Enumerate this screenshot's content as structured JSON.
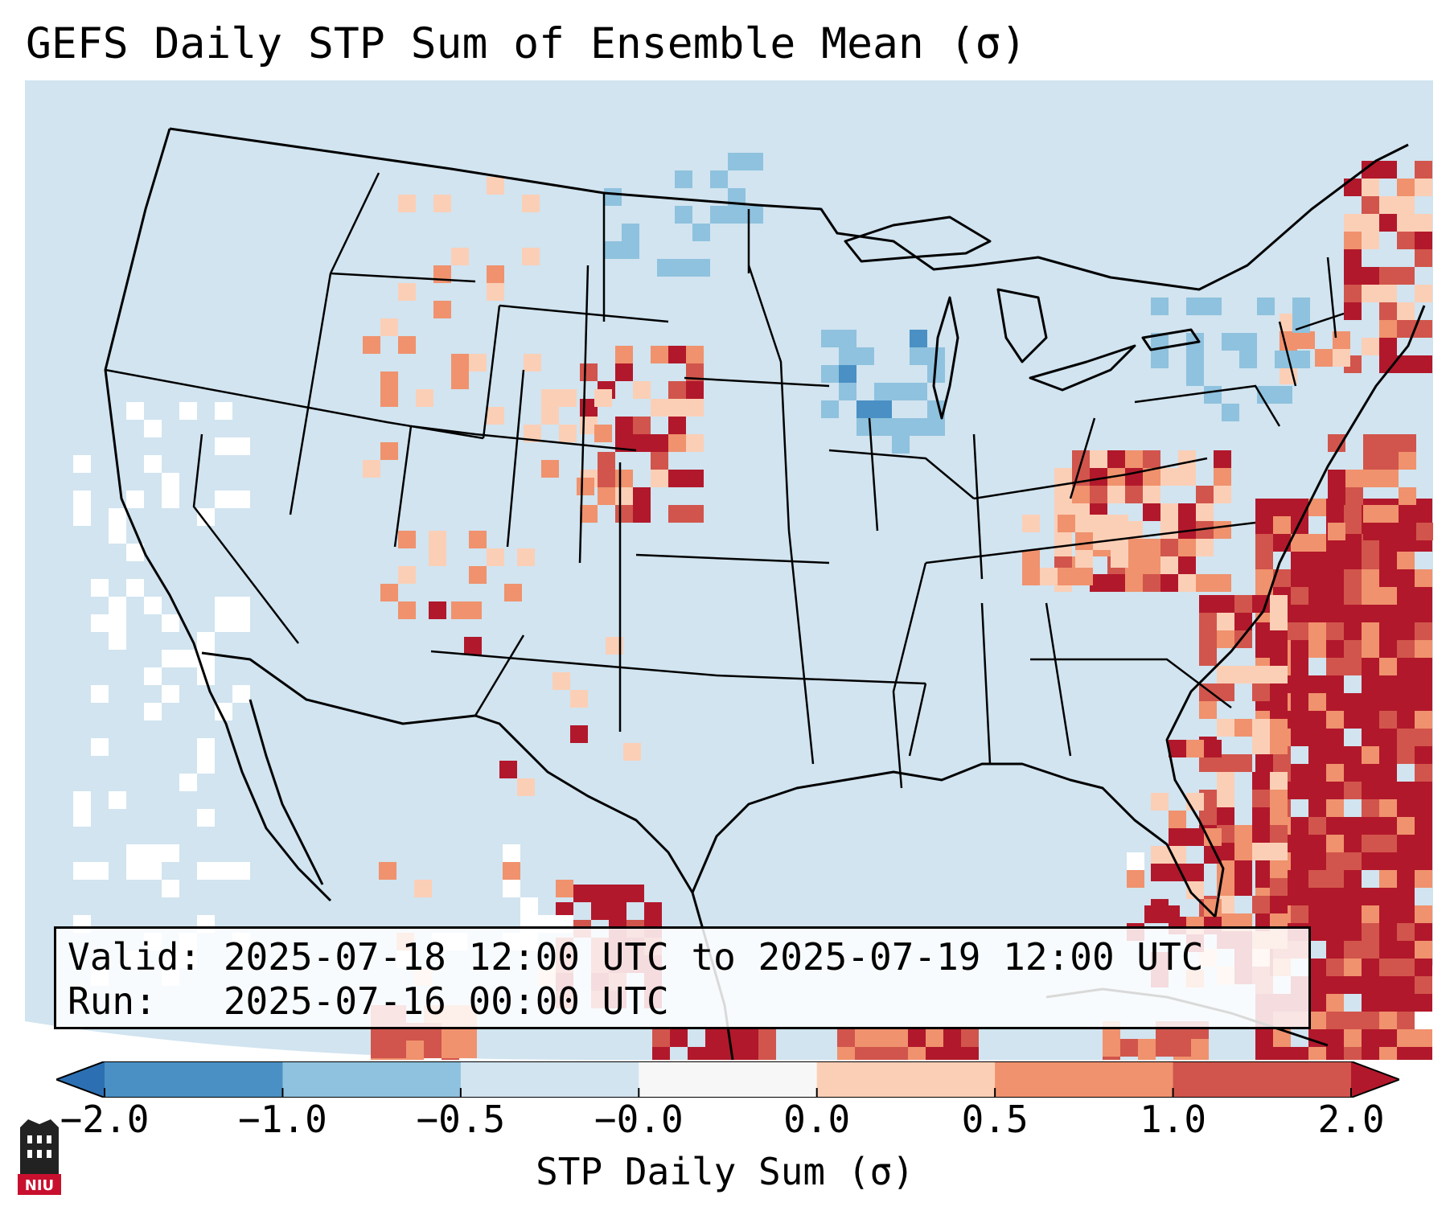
{
  "title": "GEFS Daily STP Sum of Ensemble Mean (σ)",
  "info": {
    "valid_line": "Valid: 2025-07-18 12:00 UTC to 2025-07-19 12:00 UTC",
    "run_line": "Run:   2025-07-16 00:00 UTC"
  },
  "colorbar": {
    "label": "STP Daily Sum (σ)",
    "ticks": [
      "−2.0",
      "−1.0",
      "−0.5",
      "−0.0",
      "0.0",
      "0.5",
      "1.0",
      "2.0"
    ],
    "colors": [
      "#2c70b3",
      "#4a90c4",
      "#8fc2de",
      "#d1e4f0",
      "#f7f7f7",
      "#fbcfb6",
      "#f0926d",
      "#d1554c",
      "#b2182b"
    ],
    "extend": "both"
  },
  "map": {
    "projection": "Lambert conformal, CONUS",
    "background_color": "#d1e4f0",
    "features": [
      "US state boundaries",
      "Canada provinces",
      "Mexico",
      "Cuba",
      "Bahamas"
    ],
    "highlights": [
      {
        "region": "Atlantic off Carolinas and Florida",
        "level": "above 2.0"
      },
      {
        "region": "West Virginia / Maryland",
        "level": "1.0 to 2.0"
      },
      {
        "region": "Dakotas / Nebraska",
        "level": "0.5 to 1.0"
      },
      {
        "region": "New England",
        "level": "0.5 to 2.0"
      },
      {
        "region": "Northern Mexico",
        "level": "above 2.0"
      }
    ]
  },
  "logo": {
    "text": "NIU"
  }
}
